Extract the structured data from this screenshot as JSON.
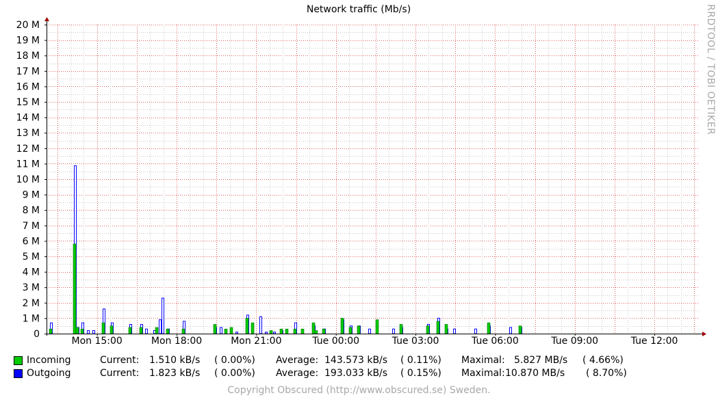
{
  "chart_data": {
    "type": "bar",
    "title": "Network traffic (Mb/s)",
    "y_tick_labels": [
      "0",
      "1 M",
      "2 M",
      "3 M",
      "4 M",
      "5 M",
      "6 M",
      "7 M",
      "8 M",
      "9 M",
      "10 M",
      "11 M",
      "12 M",
      "13 M",
      "14 M",
      "15 M",
      "16 M",
      "17 M",
      "18 M",
      "19 M",
      "20 M"
    ],
    "ylim": [
      0,
      20
    ],
    "x_tick_labels": [
      "Mon 15:00",
      "Mon 18:00",
      "Mon 21:00",
      "Tue 00:00",
      "Tue 03:00",
      "Tue 06:00",
      "Tue 09:00",
      "Tue 12:00"
    ],
    "x_tick_hours": [
      15,
      18,
      21,
      24,
      27,
      30,
      33,
      36
    ],
    "xlim_hours": [
      13.1,
      37.7
    ],
    "grid": true,
    "series": [
      {
        "name": "Incoming",
        "color": "#00cc00",
        "points": [
          [
            13.2,
            0.3
          ],
          [
            14.1,
            5.8
          ],
          [
            14.2,
            0.4
          ],
          [
            14.4,
            0.3
          ],
          [
            15.2,
            0.7
          ],
          [
            15.5,
            0.5
          ],
          [
            16.2,
            0.4
          ],
          [
            16.6,
            0.4
          ],
          [
            17.2,
            0.4
          ],
          [
            17.6,
            0.3
          ],
          [
            18.2,
            0.3
          ],
          [
            19.4,
            0.6
          ],
          [
            19.8,
            0.3
          ],
          [
            20.0,
            0.4
          ],
          [
            20.6,
            1.0
          ],
          [
            20.8,
            0.7
          ],
          [
            21.5,
            0.2
          ],
          [
            21.9,
            0.3
          ],
          [
            22.1,
            0.3
          ],
          [
            22.4,
            0.3
          ],
          [
            22.7,
            0.3
          ],
          [
            23.1,
            0.7
          ],
          [
            23.2,
            0.2
          ],
          [
            23.5,
            0.3
          ],
          [
            24.2,
            1.0
          ],
          [
            24.5,
            0.4
          ],
          [
            24.8,
            0.5
          ],
          [
            25.5,
            0.9
          ],
          [
            26.4,
            0.6
          ],
          [
            27.4,
            0.5
          ],
          [
            27.8,
            0.8
          ],
          [
            28.1,
            0.6
          ],
          [
            29.7,
            0.7
          ],
          [
            30.9,
            0.5
          ]
        ]
      },
      {
        "name": "Outgoing",
        "color": "#0000ff",
        "points": [
          [
            13.2,
            0.7
          ],
          [
            14.1,
            10.87
          ],
          [
            14.2,
            0.4
          ],
          [
            14.4,
            0.7
          ],
          [
            14.6,
            0.2
          ],
          [
            14.8,
            0.2
          ],
          [
            15.2,
            1.6
          ],
          [
            15.5,
            0.7
          ],
          [
            16.2,
            0.6
          ],
          [
            16.6,
            0.6
          ],
          [
            16.8,
            0.3
          ],
          [
            17.1,
            0.2
          ],
          [
            17.3,
            0.9
          ],
          [
            17.4,
            2.3
          ],
          [
            17.6,
            0.3
          ],
          [
            18.2,
            0.8
          ],
          [
            19.4,
            0.4
          ],
          [
            19.6,
            0.4
          ],
          [
            20.2,
            0.1
          ],
          [
            20.6,
            1.2
          ],
          [
            21.1,
            1.1
          ],
          [
            21.3,
            0.1
          ],
          [
            21.6,
            0.1
          ],
          [
            21.9,
            0.2
          ],
          [
            22.4,
            0.7
          ],
          [
            23.1,
            0.5
          ],
          [
            23.5,
            0.3
          ],
          [
            24.2,
            0.9
          ],
          [
            24.5,
            0.5
          ],
          [
            24.8,
            0.5
          ],
          [
            25.2,
            0.3
          ],
          [
            26.1,
            0.3
          ],
          [
            26.4,
            0.4
          ],
          [
            27.4,
            0.6
          ],
          [
            27.8,
            1.0
          ],
          [
            28.1,
            0.3
          ],
          [
            28.4,
            0.3
          ],
          [
            29.2,
            0.3
          ],
          [
            29.7,
            0.5
          ],
          [
            30.5,
            0.4
          ],
          [
            30.9,
            0.4
          ]
        ]
      }
    ]
  },
  "legend": [
    {
      "name": "Incoming",
      "color": "#00cc00",
      "current_label": "Current:",
      "current": "1.510 kB/s",
      "current_pct": "( 0.00%)",
      "average_label": "Average:",
      "average": "143.573 kB/s",
      "average_pct": "( 0.11%)",
      "max_label": "Maximal:",
      "max": "5.827 MB/s",
      "max_pct": "( 4.66%)"
    },
    {
      "name": "Outgoing",
      "color": "#0000ff",
      "current_label": "Current:",
      "current": "1.823 kB/s",
      "current_pct": "( 0.00%)",
      "average_label": "Average:",
      "average": "193.033 kB/s",
      "average_pct": "( 0.15%)",
      "max_label": "Maximal:",
      "max": "10.870 MB/s",
      "max_pct": "( 8.70%)"
    }
  ],
  "footer": "Copyright Obscured (http://www.obscured.se) Sweden.",
  "side_label": "RRDTOOL / TOBI OETIKER"
}
